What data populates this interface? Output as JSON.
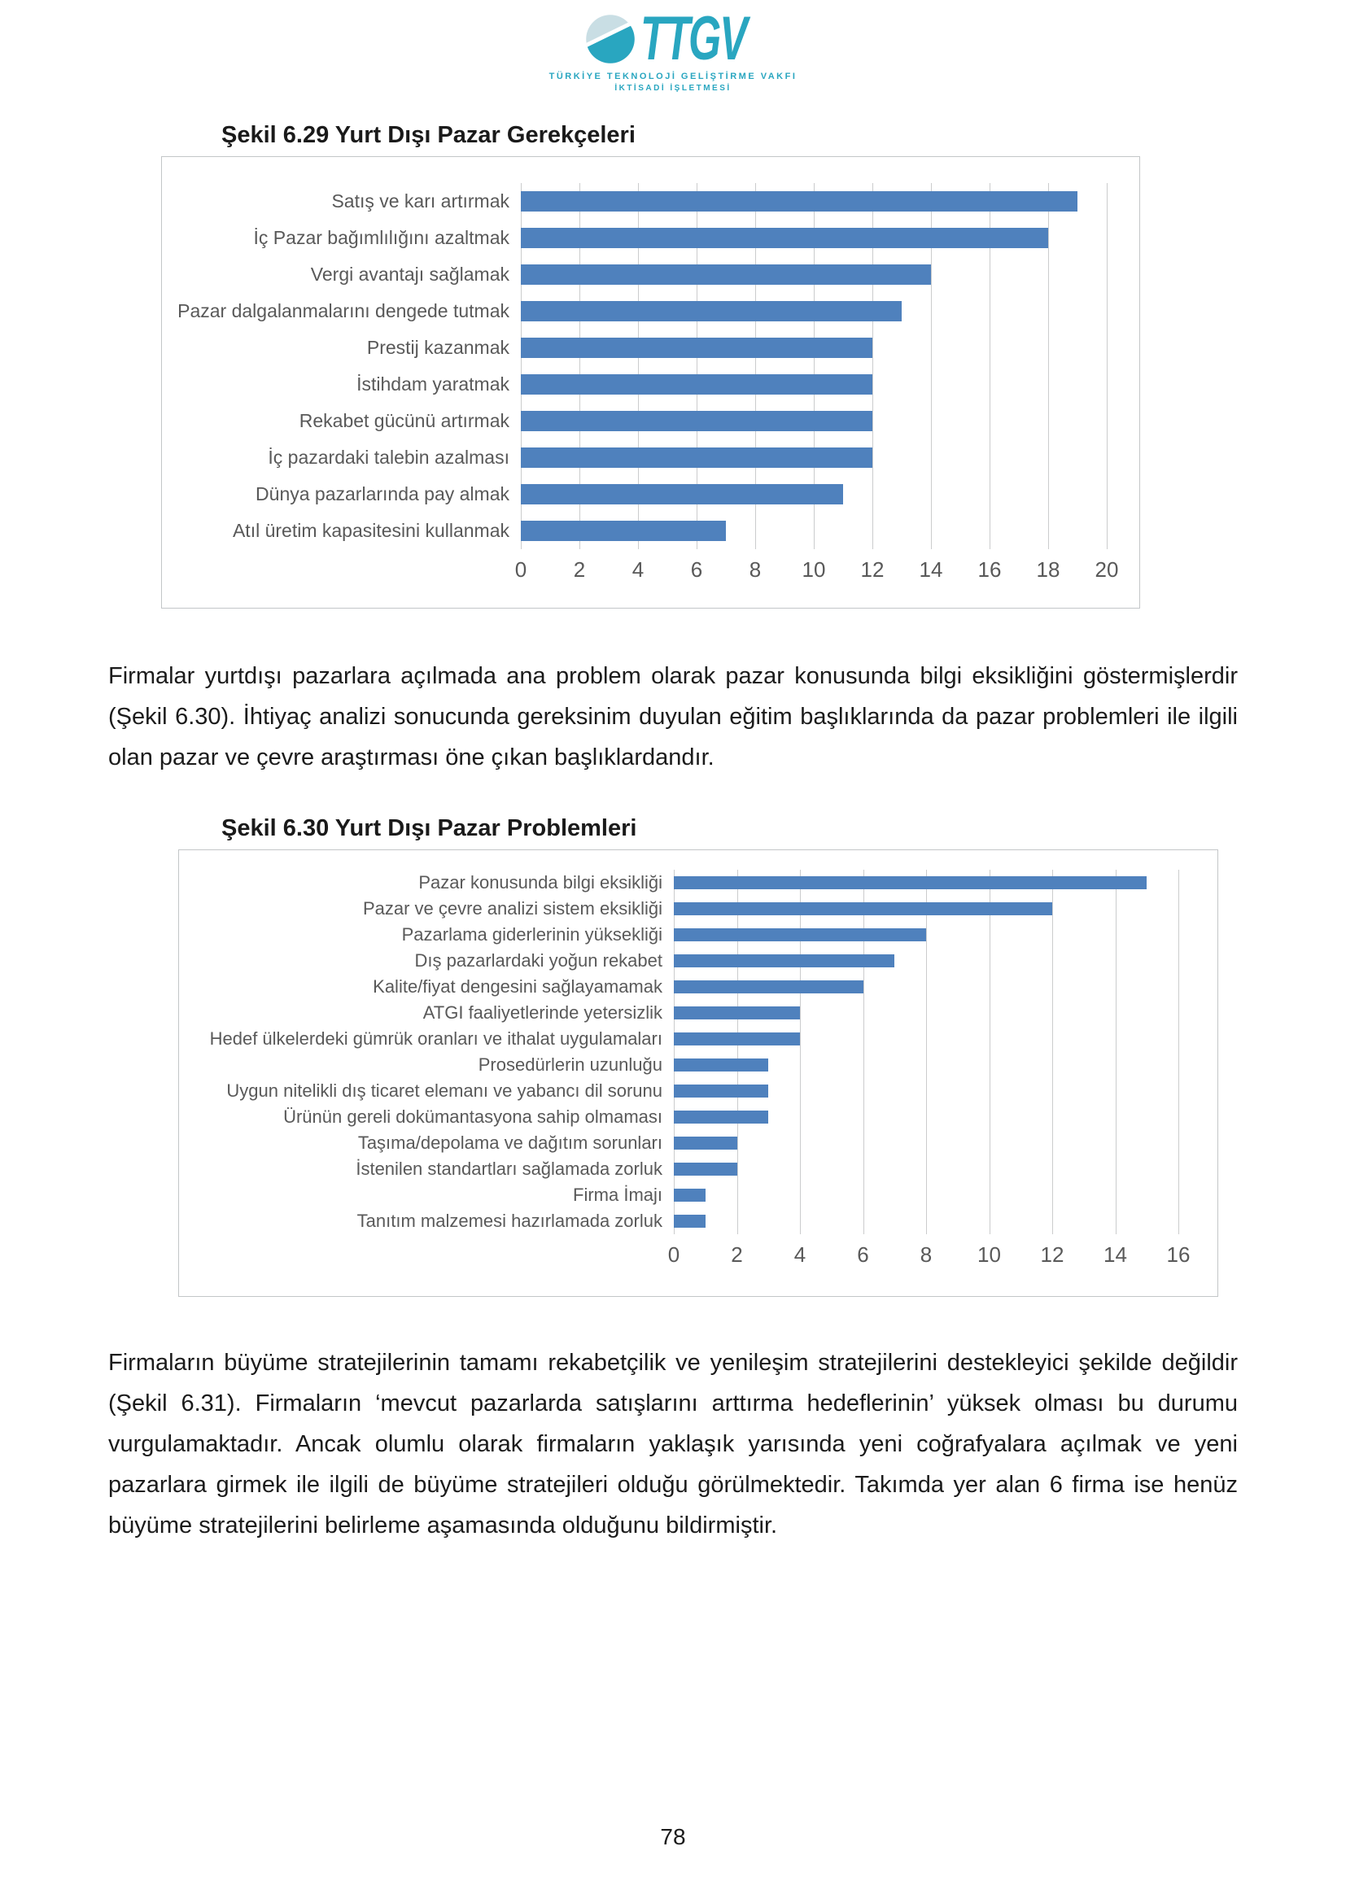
{
  "header": {
    "logo_text": "TTGV",
    "logo_subtitle_line1": "TÜRKİYE TEKNOLOJİ GELİŞTİRME VAKFI",
    "logo_subtitle_line2": "İKTİSADİ İŞLETMESİ"
  },
  "colors": {
    "bar": "#4F81BD",
    "grid": "#CBCCCD",
    "axis_text": "#595959",
    "logo_teal": "#29A6C0",
    "logo_light": "#C9DEE4"
  },
  "figures": [
    {
      "caption": "Şekil 6.29 Yurt Dışı Pazar Gerekçeleri"
    },
    {
      "caption": "Şekil 6.30 Yurt Dışı Pazar Problemleri"
    }
  ],
  "chart_data": [
    {
      "type": "bar",
      "orientation": "horizontal",
      "title": "Şekil 6.29 Yurt Dışı Pazar Gerekçeleri",
      "categories": [
        "Satış ve karı artırmak",
        "İç Pazar bağımlılığını azaltmak",
        "Vergi avantajı sağlamak",
        "Pazar dalgalanmalarını dengede tutmak",
        "Prestij kazanmak",
        "İstihdam yaratmak",
        "Rekabet gücünü artırmak",
        "İç pazardaki talebin azalması",
        "Dünya pazarlarında pay almak",
        "Atıl üretim kapasitesini kullanmak"
      ],
      "values": [
        19,
        18,
        14,
        13,
        12,
        12,
        12,
        12,
        11,
        7
      ],
      "xlabel": "",
      "ylabel": "",
      "xlim": [
        0,
        20
      ],
      "xticks": [
        0,
        2,
        4,
        6,
        8,
        10,
        12,
        14,
        16,
        18,
        20
      ],
      "grid": true,
      "legend": false,
      "bar_color": "#4F81BD"
    },
    {
      "type": "bar",
      "orientation": "horizontal",
      "title": "Şekil 6.30 Yurt Dışı Pazar Problemleri",
      "categories": [
        "Pazar konusunda bilgi eksikliği",
        "Pazar ve çevre analizi sistem eksikliği",
        "Pazarlama giderlerinin yüksekliği",
        "Dış pazarlardaki yoğun rekabet",
        "Kalite/fiyat dengesini sağlayamamak",
        "ATGI faaliyetlerinde yetersizlik",
        "Hedef ülkelerdeki gümrük oranları ve ithalat uygulamaları",
        "Prosedürlerin uzunluğu",
        "Uygun nitelikli dış ticaret elemanı ve yabancı dil sorunu",
        "Ürünün gereli dokümantasyona sahip olmaması",
        "Taşıma/depolama ve dağıtım sorunları",
        "İstenilen standartları sağlamada zorluk",
        "Firma İmajı",
        "Tanıtım malzemesi hazırlamada zorluk"
      ],
      "values": [
        15,
        12,
        8,
        7,
        6,
        4,
        4,
        3,
        3,
        3,
        2,
        2,
        1,
        1
      ],
      "xlabel": "",
      "ylabel": "",
      "xlim": [
        0,
        16
      ],
      "xticks": [
        0,
        2,
        4,
        6,
        8,
        10,
        12,
        14,
        16
      ],
      "grid": true,
      "legend": false,
      "bar_color": "#4F81BD"
    }
  ],
  "paragraphs": {
    "p1": "Firmalar yurtdışı pazarlara açılmada ana problem olarak pazar konusunda bilgi eksikliğini göstermişlerdir (Şekil 6.30). İhtiyaç analizi sonucunda gereksinim duyulan eğitim başlıklarında da pazar problemleri ile ilgili olan pazar ve çevre araştırması öne çıkan başlıklardandır.",
    "p2": "Firmaların büyüme stratejilerinin tamamı rekabetçilik ve yenileşim stratejilerini destekleyici şekilde değildir (Şekil 6.31). Firmaların ‘mevcut pazarlarda satışlarını arttırma hedeflerinin’ yüksek olması bu durumu vurgulamaktadır. Ancak olumlu olarak firmaların yaklaşık yarısında yeni coğrafyalara açılmak ve yeni pazarlara girmek ile ilgili de büyüme stratejileri olduğu görülmektedir. Takımda yer alan 6 firma ise henüz büyüme stratejilerini belirleme aşamasında olduğunu bildirmiştir."
  },
  "footer": {
    "page_number": "78"
  }
}
